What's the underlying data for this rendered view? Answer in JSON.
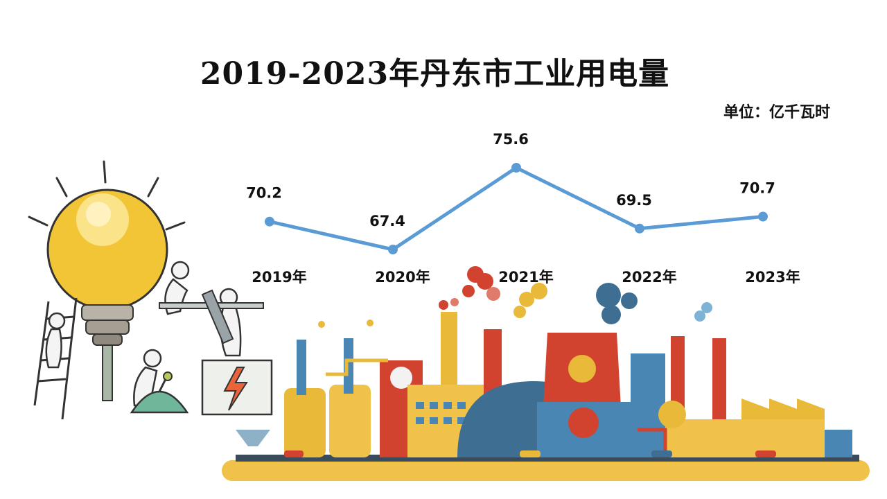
{
  "title": "2019-2023年丹东市工业用电量",
  "unit_label": "单位：亿千瓦时",
  "colors": {
    "line": "#5b9bd5",
    "bulb": "#f2c536",
    "factory_yellow": "#e9b93a",
    "factory_red": "#d1432f",
    "factory_blue": "#4a86b4",
    "ground": "#f0c24a"
  },
  "chart_data": {
    "type": "line",
    "categories": [
      "2019年",
      "2020年",
      "2021年",
      "2022年",
      "2023年"
    ],
    "series": [
      {
        "values": [
          70.2,
          67.4,
          75.6,
          69.5,
          70.7
        ]
      }
    ],
    "value_labels": [
      "70.2",
      "67.4",
      "75.6",
      "69.5",
      "70.7"
    ],
    "ylabel": "",
    "xlabel": "",
    "grid": false,
    "legend": "none"
  }
}
